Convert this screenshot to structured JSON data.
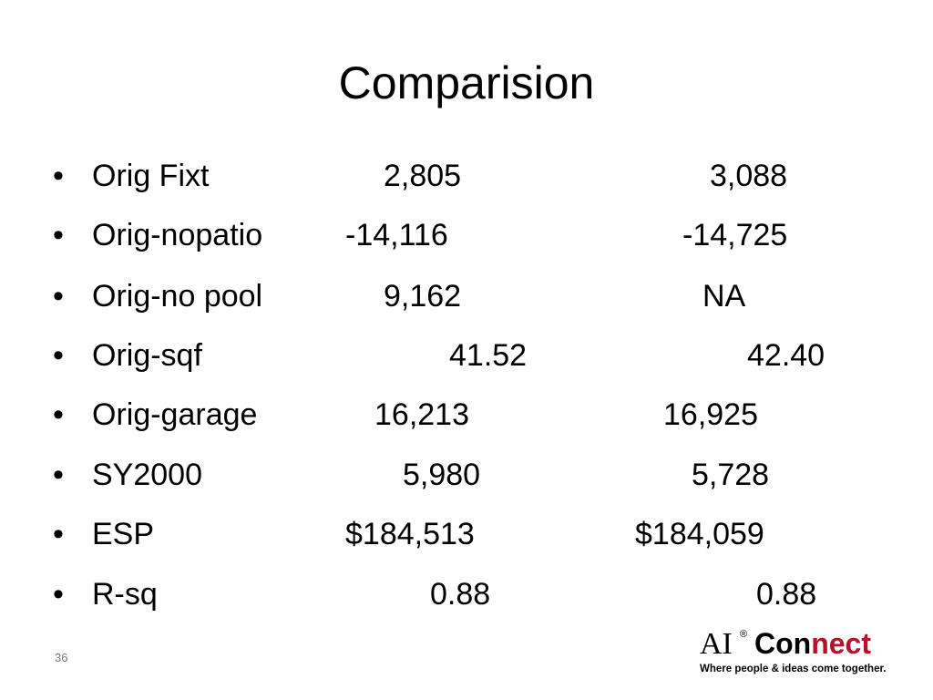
{
  "slide": {
    "title": "Comparision",
    "rows": [
      {
        "label": "Orig Fixt",
        "values": [
          "2,805",
          "3,088"
        ]
      },
      {
        "label": "Orig-nopatio",
        "values": [
          "-14,116",
          "-14,725"
        ]
      },
      {
        "label": "Orig-no pool",
        "values": [
          "9,162",
          "NA"
        ]
      },
      {
        "label": "Orig-sqf",
        "values": [
          "41.52",
          "42.40"
        ]
      },
      {
        "label": "Orig-garage",
        "values": [
          "16,213",
          "16,925"
        ]
      },
      {
        "label": "SY2000",
        "values": [
          "5,980",
          "5,728"
        ]
      },
      {
        "label": "ESP",
        "values": [
          "$184,513",
          "$184,059"
        ]
      },
      {
        "label": "R-sq",
        "values": [
          "0.88",
          "0.88"
        ]
      }
    ],
    "page_number": "36",
    "logo": {
      "ai": "AI",
      "registered": "®",
      "con": "Con",
      "nect": "nect",
      "tagline": "Where people & ideas come together."
    }
  }
}
